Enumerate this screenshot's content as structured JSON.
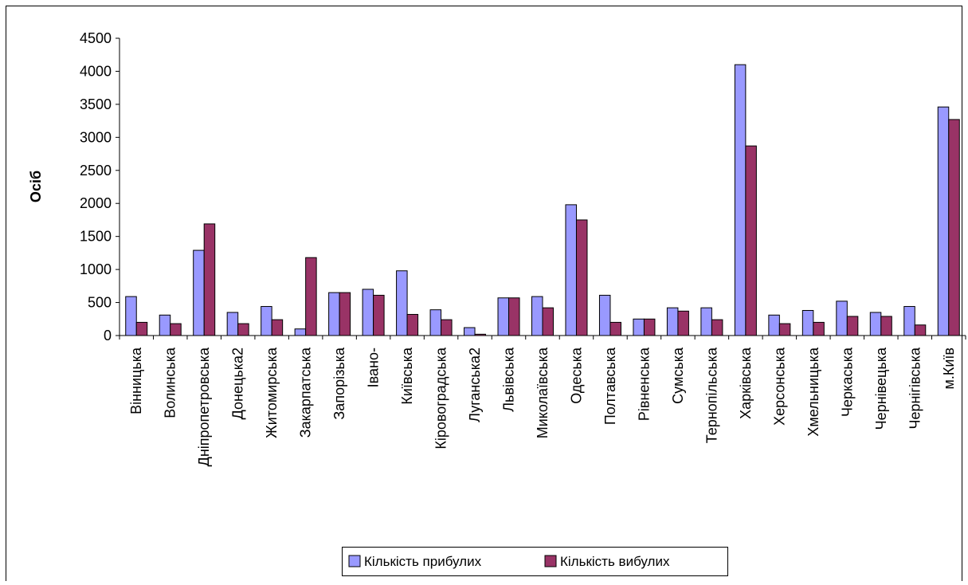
{
  "chart_data": {
    "type": "bar",
    "title": "",
    "xlabel": "",
    "ylabel": "Осіб",
    "ylim": [
      0,
      4500
    ],
    "yticks": [
      0,
      500,
      1000,
      1500,
      2000,
      2500,
      3000,
      3500,
      4000,
      4500
    ],
    "grid": false,
    "legend_position": "bottom",
    "categories": [
      "Вінницька",
      "Волинська",
      "Дніпропетровська",
      "Донецька2",
      "Житомирська",
      "Закарпатська",
      "Запорізька",
      "Івано-",
      "Київська",
      "Кіровоградська",
      "Луганська2",
      "Львівська",
      "Миколаївська",
      "Одеська",
      "Полтавська",
      "Рівненська",
      "Сумська",
      "Тернопільська",
      "Харківська",
      "Херсонська",
      "Хмельницька",
      "Черкаська",
      "Чернівецька",
      "Чернігівська",
      "м.Київ"
    ],
    "series": [
      {
        "name": "Кількість прибулих",
        "color": "#9999ff",
        "values": [
          590,
          310,
          1290,
          350,
          440,
          100,
          650,
          700,
          980,
          390,
          120,
          570,
          590,
          1980,
          610,
          250,
          420,
          420,
          4100,
          310,
          380,
          520,
          350,
          440,
          3460
        ]
      },
      {
        "name": "Кількість вибулих",
        "color": "#993366",
        "values": [
          200,
          180,
          1690,
          180,
          240,
          1180,
          650,
          610,
          320,
          240,
          20,
          570,
          420,
          1750,
          200,
          250,
          370,
          240,
          2870,
          180,
          200,
          290,
          290,
          160,
          3270
        ]
      }
    ]
  }
}
